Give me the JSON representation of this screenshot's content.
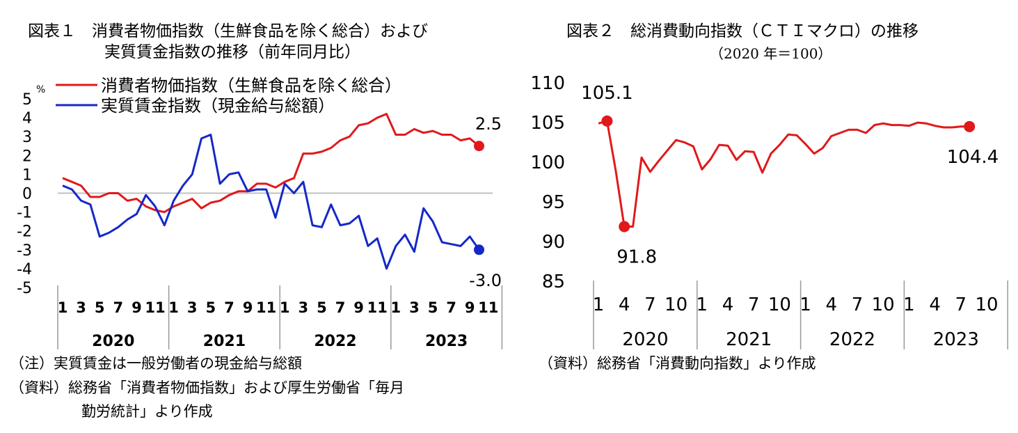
{
  "colors": {
    "cpi": "#e0191b",
    "wage": "#1428c8",
    "ctim": "#e0191b",
    "axis": "#999999",
    "baseline": "#c0c0c0"
  },
  "chart1": {
    "title_line1": "図表１　消費者物価指数（生鮮食品を除く総合）および",
    "title_line2": "実質賃金指数の推移（前年同月比）",
    "unit": "%",
    "legend_cpi": "消費者物価指数（生鮮食品を除く総合）",
    "legend_wage": "実質賃金指数（現金給与総額）",
    "note1": "（注）実質賃金は一般労働者の現金給与総額",
    "note2": "（資料）総務省「消費者物価指数」および厚生労働省「毎月",
    "note3": "勤労統計」より作成"
  },
  "chart2": {
    "title_line1": "図表２　総消費動向指数（ＣＴＩマクロ）の推移",
    "title_line2": "（2020 年＝100）",
    "note": "（資料）総務省「消費動向指数」より作成"
  },
  "chart_data": [
    {
      "type": "line",
      "title": "消費者物価指数（生鮮食品を除く総合）および実質賃金指数の推移（前年同月比）",
      "ylabel": "%",
      "ylim": [
        -5,
        5
      ],
      "yticks": [
        "5",
        "4",
        "3",
        "2",
        "1",
        "0",
        "-1",
        "-2",
        "-3",
        "-4",
        "-5"
      ],
      "x_month_labels": [
        "1",
        "3",
        "5",
        "7",
        "9",
        "11"
      ],
      "years": [
        "2020",
        "2021",
        "2022",
        "2023"
      ],
      "x_start": "2020-01",
      "grid": false,
      "legend_position": "top-left",
      "series": [
        {
          "name": "消費者物価指数（生鮮食品を除く総合）",
          "color": "#e0191b",
          "values": [
            0.8,
            0.6,
            0.4,
            -0.2,
            -0.2,
            0.0,
            0.0,
            -0.4,
            -0.3,
            -0.7,
            -0.9,
            -1.0,
            -0.7,
            -0.5,
            -0.3,
            -0.8,
            -0.5,
            -0.4,
            -0.1,
            0.1,
            0.1,
            0.5,
            0.5,
            0.3,
            0.6,
            0.8,
            2.1,
            2.1,
            2.2,
            2.4,
            2.8,
            3.0,
            3.6,
            3.7,
            4.0,
            4.2,
            3.1,
            3.1,
            3.4,
            3.2,
            3.3,
            3.1,
            3.1,
            2.8,
            2.9,
            2.5
          ],
          "end_label": "2.5"
        },
        {
          "name": "実質賃金指数（現金給与総額）",
          "color": "#1428c8",
          "values": [
            0.4,
            0.2,
            -0.4,
            -0.6,
            -2.3,
            -2.1,
            -1.8,
            -1.4,
            -1.1,
            -0.1,
            -0.7,
            -1.7,
            -0.4,
            0.4,
            1.0,
            2.9,
            3.1,
            0.5,
            1.0,
            1.1,
            0.1,
            0.2,
            0.2,
            -1.3,
            0.5,
            0.0,
            0.6,
            -1.7,
            -1.8,
            -0.6,
            -1.7,
            -1.6,
            -1.2,
            -2.8,
            -2.4,
            -4.0,
            -2.8,
            -2.2,
            -3.1,
            -0.8,
            -1.5,
            -2.6,
            -2.7,
            -2.8,
            -2.3,
            -3.0
          ],
          "end_label": "-3.0"
        }
      ]
    },
    {
      "type": "line",
      "title": "総消費動向指数（ＣＴＩマクロ）の推移",
      "subtitle": "（2020 年＝100）",
      "ylim": [
        85,
        110
      ],
      "yticks": [
        "110",
        "105",
        "100",
        "95",
        "90",
        "85"
      ],
      "x_month_labels": [
        "1",
        "4",
        "7",
        "10"
      ],
      "years": [
        "2020",
        "2021",
        "2022",
        "2023"
      ],
      "x_start": "2020-01",
      "grid": false,
      "series": [
        {
          "color": "#e0191b",
          "values": [
            104.8,
            105.1,
            98.9,
            91.8,
            91.8,
            100.5,
            98.7,
            100.1,
            101.4,
            102.7,
            102.4,
            101.9,
            99.0,
            100.3,
            102.1,
            102.0,
            100.2,
            101.3,
            101.2,
            98.6,
            101.0,
            102.1,
            103.4,
            103.3,
            102.2,
            101.0,
            101.7,
            103.2,
            103.6,
            104.0,
            104.0,
            103.6,
            104.6,
            104.8,
            104.6,
            104.6,
            104.5,
            104.9,
            104.8,
            104.5,
            104.3,
            104.3,
            104.4,
            104.4
          ],
          "marked_points": [
            {
              "x": "2020-02",
              "y": 105.1,
              "label": "105.1"
            },
            {
              "x": "2020-04",
              "y": 91.8,
              "label": "91.8"
            },
            {
              "x": "2023-08",
              "y": 104.4,
              "label": "104.4"
            }
          ]
        }
      ]
    }
  ]
}
